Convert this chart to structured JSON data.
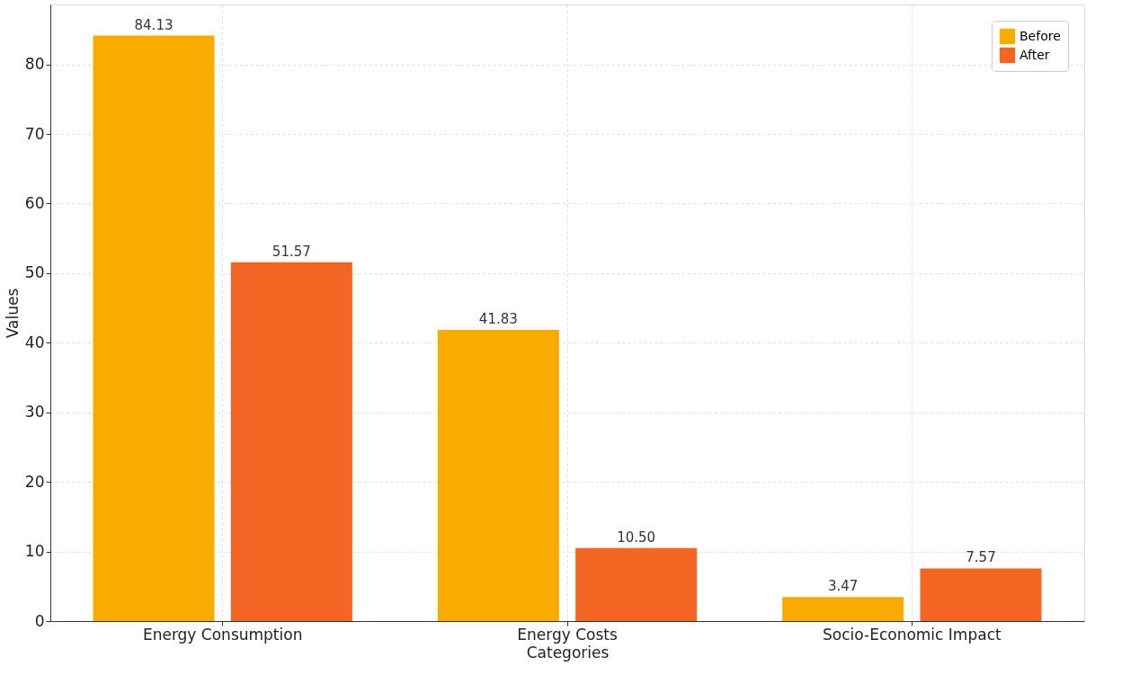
{
  "chart_data": {
    "type": "bar",
    "xlabel": "Categories",
    "ylabel": "Values",
    "categories": [
      "Energy Consumption",
      "Energy Costs",
      "Socio-Economic Impact"
    ],
    "series": [
      {
        "name": "Before",
        "color": "#f9ab00",
        "values": [
          84.13,
          41.83,
          3.47
        ],
        "value_labels": [
          "84.13",
          "41.83",
          "3.47"
        ]
      },
      {
        "name": "After",
        "color": "#f26522",
        "values": [
          51.57,
          10.5,
          7.57
        ],
        "value_labels": [
          "51.57",
          "10.50",
          "7.57"
        ]
      }
    ],
    "ylim": [
      0,
      88.6
    ],
    "yticks": [
      0,
      10,
      20,
      30,
      40,
      50,
      60,
      70,
      80
    ],
    "grid": true,
    "legend": "top right"
  }
}
